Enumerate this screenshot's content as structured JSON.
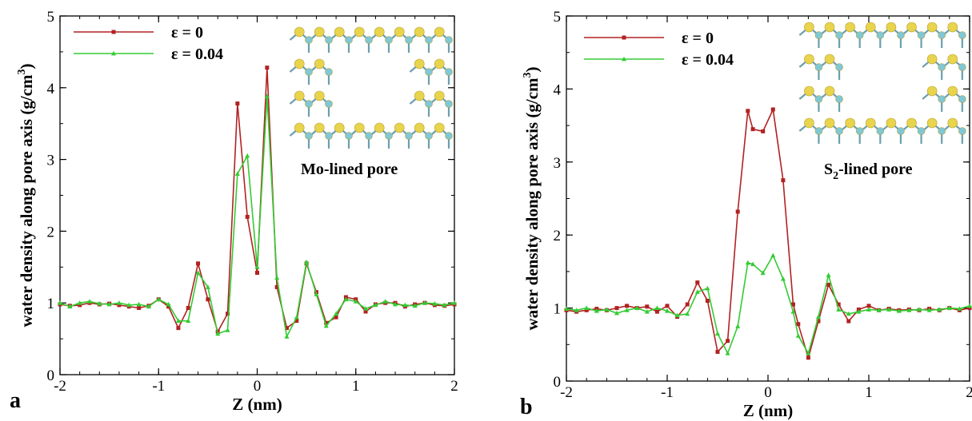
{
  "chart_data": [
    {
      "type": "line",
      "panel_label": "a",
      "xlabel": "Z (nm)",
      "ylabel": "water density along pore axis (g/cm",
      "ylabel_sup": "3",
      "ylabel_close": ")",
      "xlim": [
        -2,
        2
      ],
      "ylim": [
        0,
        5
      ],
      "x_ticks": [
        "-2",
        "-1",
        "0",
        "1",
        "2"
      ],
      "y_ticks": [
        "0",
        "1",
        "2",
        "3",
        "4",
        "5"
      ],
      "grid": false,
      "legend_position": "top-left",
      "inset_label": "Mo-lined pore",
      "inset_label_sub": "",
      "inset_label_rest": "",
      "series": [
        {
          "name": "ε = 0",
          "color": "#b22222",
          "marker": "square",
          "x": [
            -2.0,
            -1.9,
            -1.8,
            -1.7,
            -1.6,
            -1.5,
            -1.4,
            -1.3,
            -1.2,
            -1.1,
            -1.0,
            -0.9,
            -0.8,
            -0.7,
            -0.6,
            -0.5,
            -0.4,
            -0.3,
            -0.2,
            -0.1,
            0.0,
            0.1,
            0.2,
            0.3,
            0.4,
            0.5,
            0.6,
            0.7,
            0.8,
            0.9,
            1.0,
            1.1,
            1.2,
            1.3,
            1.4,
            1.5,
            1.6,
            1.7,
            1.8,
            1.9,
            2.0
          ],
          "y": [
            0.98,
            0.96,
            0.97,
            1.0,
            0.98,
            0.99,
            0.97,
            0.95,
            0.93,
            0.96,
            1.05,
            0.95,
            0.65,
            0.93,
            1.55,
            1.05,
            0.6,
            0.85,
            3.78,
            2.2,
            1.42,
            4.28,
            1.22,
            0.65,
            0.75,
            1.55,
            1.15,
            0.72,
            0.8,
            1.08,
            1.05,
            0.88,
            0.98,
            1.0,
            1.0,
            0.95,
            0.98,
            1.0,
            0.97,
            0.96,
            0.98
          ]
        },
        {
          "name": "ε = 0.04",
          "color": "#33cc33",
          "marker": "triangle",
          "x": [
            -2.0,
            -1.9,
            -1.8,
            -1.7,
            -1.6,
            -1.5,
            -1.4,
            -1.3,
            -1.2,
            -1.1,
            -1.0,
            -0.9,
            -0.8,
            -0.7,
            -0.6,
            -0.5,
            -0.4,
            -0.3,
            -0.2,
            -0.1,
            0.0,
            0.1,
            0.2,
            0.3,
            0.4,
            0.5,
            0.6,
            0.7,
            0.8,
            0.9,
            1.0,
            1.1,
            1.2,
            1.3,
            1.4,
            1.5,
            1.6,
            1.7,
            1.8,
            1.9,
            2.0
          ],
          "y": [
            1.0,
            0.95,
            1.0,
            1.02,
            0.99,
            0.98,
            1.0,
            0.97,
            0.98,
            0.95,
            1.05,
            0.98,
            0.75,
            0.75,
            1.42,
            1.22,
            0.57,
            0.62,
            2.8,
            3.05,
            1.5,
            3.88,
            1.35,
            0.53,
            0.8,
            1.57,
            1.12,
            0.68,
            0.85,
            1.05,
            1.02,
            0.92,
            0.97,
            1.02,
            0.98,
            0.97,
            0.96,
            1.0,
            0.99,
            0.97,
            1.0
          ]
        }
      ]
    },
    {
      "type": "line",
      "panel_label": "b",
      "xlabel": "Z (nm)",
      "ylabel": "water density along pore axis (g/cm",
      "ylabel_sup": "3",
      "ylabel_close": ")",
      "xlim": [
        -2,
        2
      ],
      "ylim": [
        0,
        5
      ],
      "x_ticks": [
        "-2",
        "-1",
        "0",
        "1",
        "2"
      ],
      "y_ticks": [
        "0",
        "1",
        "2",
        "3",
        "4",
        "5"
      ],
      "grid": false,
      "legend_position": "top-left",
      "inset_label": "S",
      "inset_label_sub": "2",
      "inset_label_rest": "-lined pore",
      "series": [
        {
          "name": "ε = 0",
          "color": "#b22222",
          "marker": "square",
          "x": [
            -2.0,
            -1.9,
            -1.8,
            -1.7,
            -1.6,
            -1.5,
            -1.4,
            -1.3,
            -1.2,
            -1.1,
            -1.0,
            -0.9,
            -0.8,
            -0.7,
            -0.6,
            -0.5,
            -0.4,
            -0.3,
            -0.2,
            -0.15,
            -0.05,
            0.05,
            0.15,
            0.25,
            0.3,
            0.4,
            0.5,
            0.6,
            0.7,
            0.8,
            0.9,
            1.0,
            1.1,
            1.2,
            1.3,
            1.4,
            1.5,
            1.6,
            1.7,
            1.8,
            1.9,
            2.0
          ],
          "y": [
            0.97,
            0.95,
            0.97,
            0.99,
            0.97,
            1.0,
            1.03,
            1.0,
            1.02,
            0.95,
            1.03,
            0.88,
            1.05,
            1.35,
            1.1,
            0.4,
            0.55,
            2.32,
            3.7,
            3.45,
            3.42,
            3.72,
            2.75,
            1.05,
            0.78,
            0.32,
            0.82,
            1.32,
            1.05,
            0.82,
            0.98,
            1.03,
            0.97,
            0.99,
            0.97,
            0.98,
            0.97,
            0.99,
            0.97,
            1.0,
            0.97,
            1.0
          ]
        },
        {
          "name": "ε = 0.04",
          "color": "#33cc33",
          "marker": "triangle",
          "x": [
            -2.0,
            -1.9,
            -1.8,
            -1.7,
            -1.6,
            -1.5,
            -1.4,
            -1.3,
            -1.2,
            -1.1,
            -1.0,
            -0.9,
            -0.8,
            -0.7,
            -0.6,
            -0.5,
            -0.4,
            -0.3,
            -0.2,
            -0.15,
            -0.05,
            0.05,
            0.15,
            0.25,
            0.3,
            0.4,
            0.5,
            0.6,
            0.7,
            0.8,
            0.9,
            1.0,
            1.1,
            1.2,
            1.3,
            1.4,
            1.5,
            1.6,
            1.7,
            1.8,
            1.9,
            2.0
          ],
          "y": [
            0.99,
            0.97,
            1.0,
            0.96,
            0.98,
            0.93,
            0.97,
            1.0,
            0.95,
            1.0,
            0.96,
            0.9,
            0.92,
            1.22,
            1.27,
            0.65,
            0.38,
            0.75,
            1.62,
            1.6,
            1.48,
            1.72,
            1.4,
            0.95,
            0.62,
            0.38,
            0.88,
            1.45,
            0.98,
            0.92,
            0.95,
            0.98,
            0.97,
            0.98,
            0.96,
            0.97,
            0.98,
            0.97,
            0.98,
            1.0,
            0.99,
            1.03
          ]
        }
      ]
    }
  ]
}
